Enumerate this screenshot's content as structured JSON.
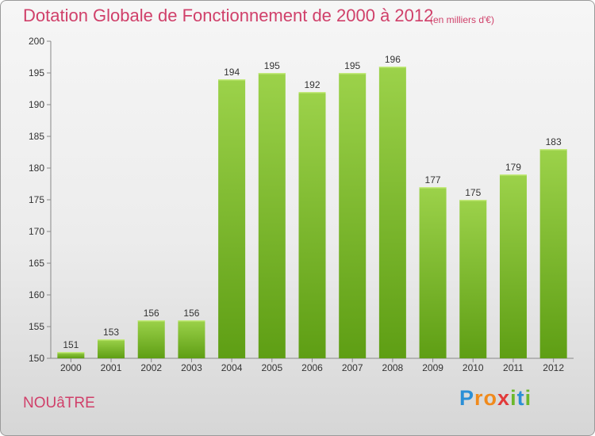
{
  "header": {
    "title": "Dotation Globale de Fonctionnement de 2000 à 2012",
    "subtitle": "(en milliers d'€)"
  },
  "footer": {
    "commune": "NOUâTRE",
    "logo_letters": [
      "P",
      "r",
      "o",
      "x",
      "i",
      "t",
      "i"
    ]
  },
  "colors": {
    "title": "#d0406a",
    "bar_light": "#9cd24a",
    "bar_dark": "#5e9e14",
    "logo": [
      "#2b8fd6",
      "#f08a1c",
      "#f08a1c",
      "#e23a3a",
      "#6cb82c",
      "#2b8fd6",
      "#6cb82c"
    ]
  },
  "chart_data": {
    "type": "bar",
    "title": "Dotation Globale de Fonctionnement de 2000 à 2012",
    "subtitle": "(en milliers d'€)",
    "categories": [
      "2000",
      "2001",
      "2002",
      "2003",
      "2004",
      "2005",
      "2006",
      "2007",
      "2008",
      "2009",
      "2010",
      "2011",
      "2012"
    ],
    "values": [
      151,
      153,
      156,
      156,
      194,
      195,
      192,
      195,
      196,
      177,
      175,
      179,
      183
    ],
    "ylim": [
      150,
      200
    ],
    "yticks": [
      150,
      155,
      160,
      165,
      170,
      175,
      180,
      185,
      190,
      195,
      200
    ],
    "grid": false,
    "legend": "none"
  }
}
